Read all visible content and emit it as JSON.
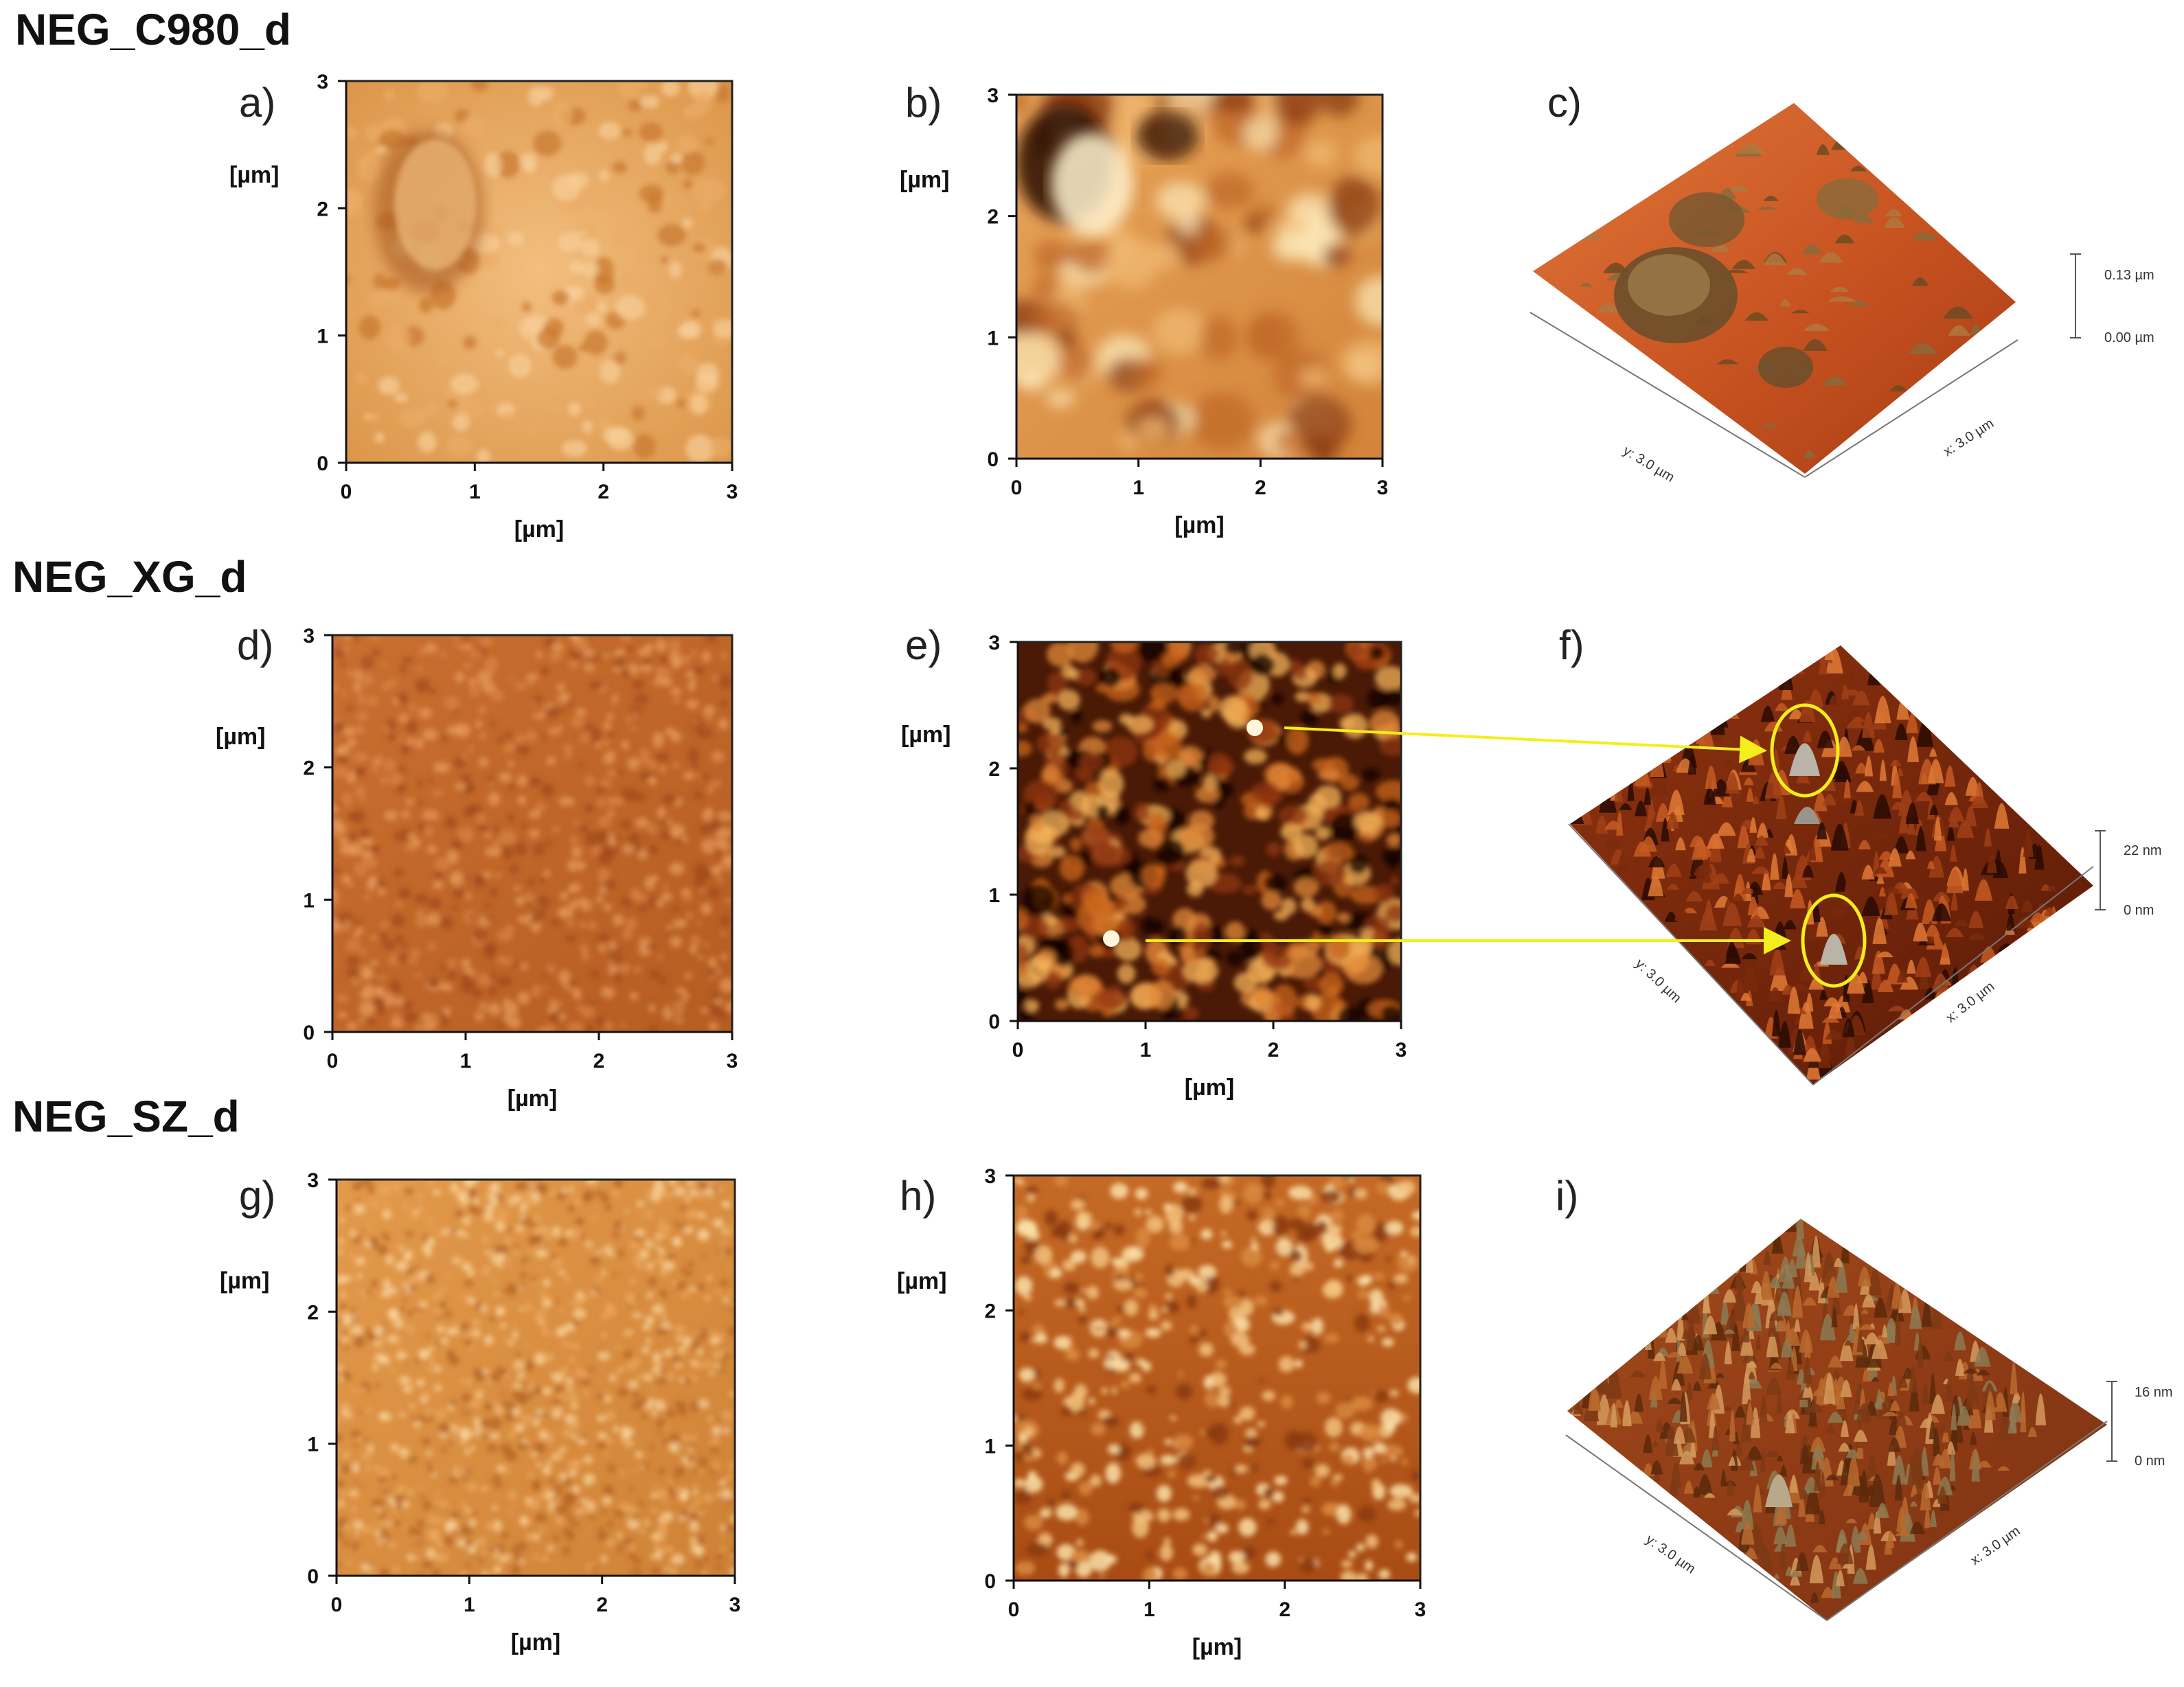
{
  "rows": [
    {
      "title": "NEG_C980_d"
    },
    {
      "title": "NEG_XG_d"
    },
    {
      "title": "NEG_SZ_d"
    }
  ],
  "panels": [
    {
      "label": "a)",
      "type": "amplitude",
      "palette": "light"
    },
    {
      "label": "b)",
      "type": "height",
      "palette": "blotchy"
    },
    {
      "label": "c)",
      "type": "3d",
      "x_label": "x: 3.0 µm",
      "y_label": "y: 3.0 µm",
      "scale_top": "0.13 µm",
      "scale_bottom": "0.00 µm"
    },
    {
      "label": "d)",
      "type": "amplitude",
      "palette": "fine"
    },
    {
      "label": "e)",
      "type": "height",
      "palette": "dark"
    },
    {
      "label": "f)",
      "type": "3d",
      "x_label": "x: 3.0 µm",
      "y_label": "y: 3.0 µm",
      "scale_top": "22 nm",
      "scale_bottom": "0 nm"
    },
    {
      "label": "g)",
      "type": "amplitude",
      "palette": "grainy"
    },
    {
      "label": "h)",
      "type": "height",
      "palette": "grainy"
    },
    {
      "label": "i)",
      "type": "3d",
      "x_label": "x: 3.0 µm",
      "y_label": "y: 3.0 µm",
      "scale_top": "16 nm",
      "scale_bottom": "0 nm"
    }
  ],
  "axis": {
    "unit_label": "[µm]",
    "ticks": [
      "0",
      "1",
      "2",
      "3"
    ]
  },
  "colors": {
    "amber_light": "#f0b872",
    "amber_mid": "#cf7d38",
    "brown_dark": "#7a2e10",
    "black": "#120500",
    "highlight_yellow": "#f4ee1a"
  }
}
